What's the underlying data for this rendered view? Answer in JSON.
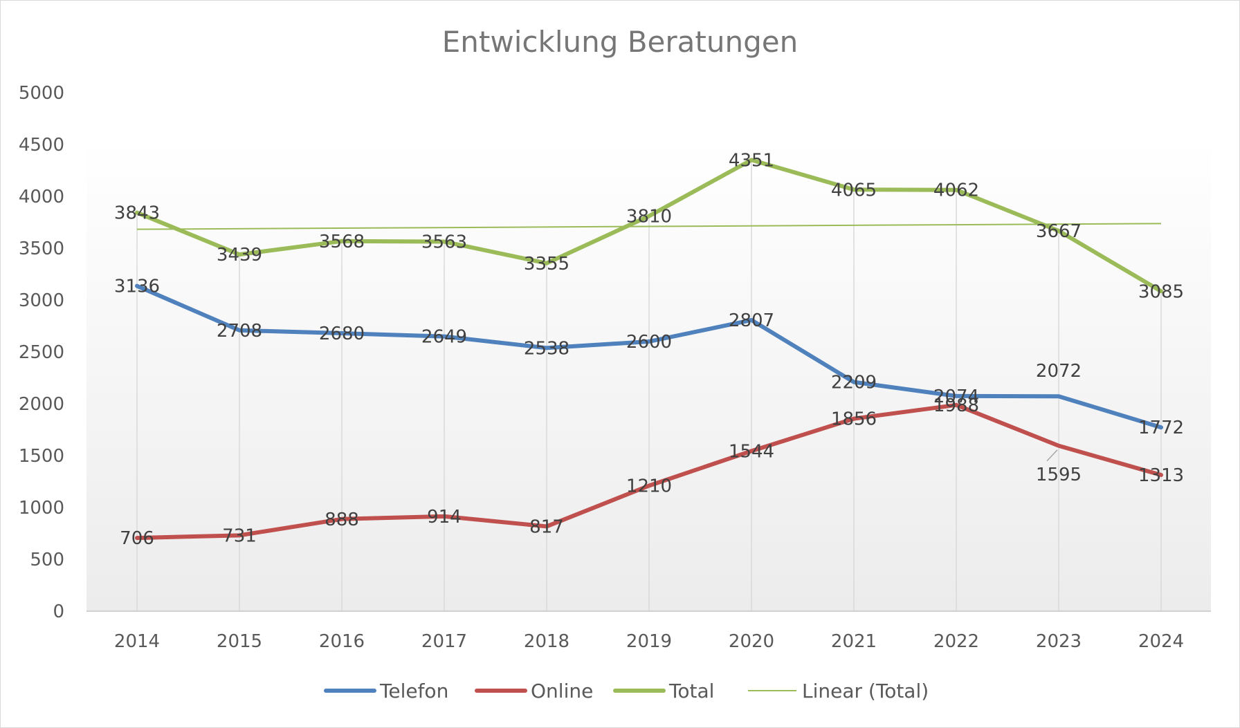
{
  "chart_data": {
    "type": "line",
    "title": "Entwicklung Beratungen",
    "categories": [
      "2014",
      "2015",
      "2016",
      "2017",
      "2018",
      "2019",
      "2020",
      "2021",
      "2022",
      "2023",
      "2024"
    ],
    "ylim": [
      0,
      5000
    ],
    "yticks": [
      0,
      500,
      1000,
      1500,
      2000,
      2500,
      3000,
      3500,
      4000,
      4500,
      5000
    ],
    "grid": "vertical drop lines",
    "legend_position": "bottom",
    "series": [
      {
        "name": "Telefon",
        "color": "#4f81bd",
        "values": [
          3136,
          2708,
          2680,
          2649,
          2538,
          2600,
          2807,
          2209,
          2074,
          2072,
          1772
        ]
      },
      {
        "name": "Online",
        "color": "#c0504d",
        "values": [
          706,
          731,
          888,
          914,
          817,
          1210,
          1544,
          1856,
          1988,
          1595,
          1313
        ]
      },
      {
        "name": "Total",
        "color": "#9bbb59",
        "values": [
          3843,
          3439,
          3568,
          3563,
          3355,
          3810,
          4351,
          4065,
          4062,
          3667,
          3085
        ]
      }
    ],
    "trendline": {
      "name": "Linear (Total)",
      "color": "#9bbb59",
      "of_series": "Total",
      "type": "linear"
    }
  }
}
